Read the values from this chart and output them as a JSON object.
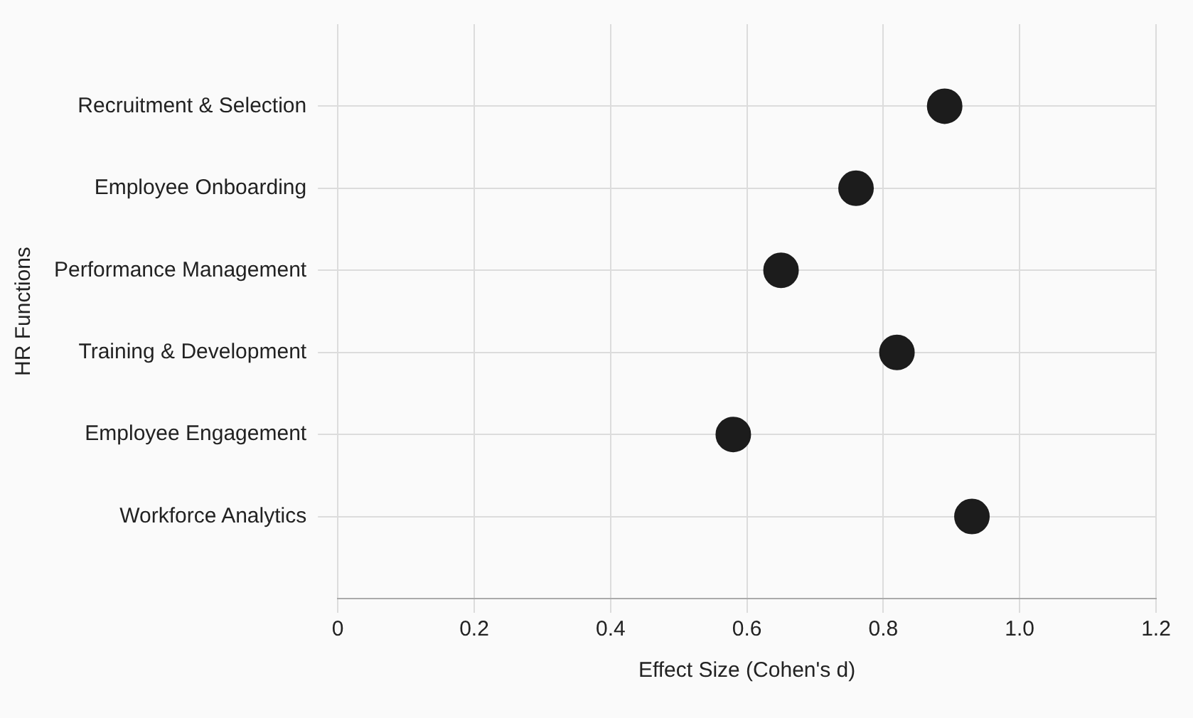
{
  "chart_data": {
    "type": "scatter",
    "orientation": "horizontal",
    "categories": [
      "Recruitment & Selection",
      "Employee Onboarding",
      "Performance Management",
      "Training & Development",
      "Employee Engagement",
      "Workforce Analytics"
    ],
    "values": [
      0.89,
      0.76,
      0.65,
      0.82,
      0.58,
      0.93
    ],
    "color": "#1c1c1c",
    "marker": "circle",
    "xlabel": "Effect Size (Cohen's d)",
    "ylabel": "HR Functions",
    "xlim": [
      0,
      1.2
    ],
    "xticks": [
      0,
      {
        "value": 0.2,
        "label": "0.2"
      },
      {
        "value": 0.4,
        "label": "0.4"
      },
      {
        "value": 0.6,
        "label": "0.6"
      },
      {
        "value": 0.8,
        "label": "0.8"
      },
      {
        "value": 1.0,
        "label": "1.0"
      },
      {
        "value": 1.2,
        "label": "1.2"
      }
    ],
    "grid": true,
    "legend": false
  }
}
